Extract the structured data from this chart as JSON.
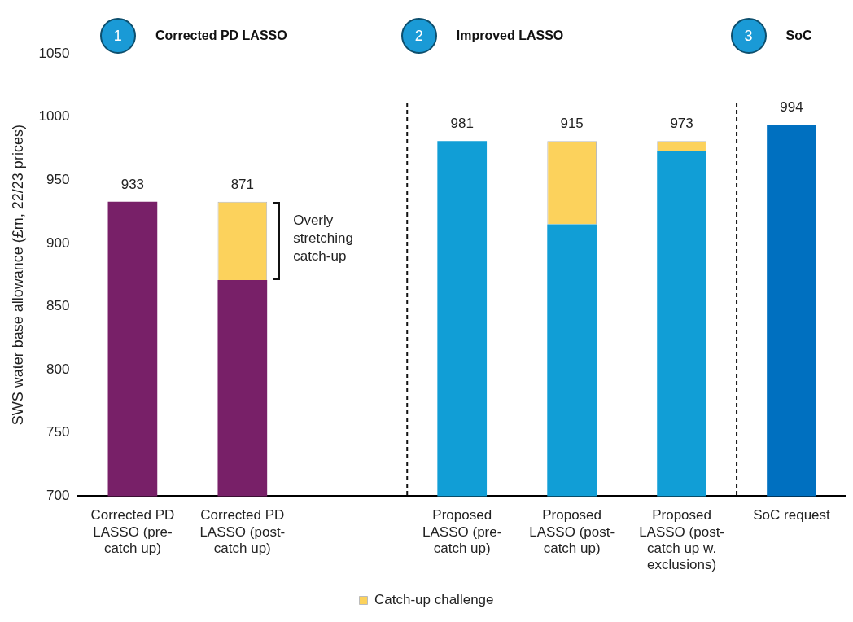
{
  "chart_data": {
    "type": "bar",
    "ylabel": "SWS water base allowance (£m, 22/23 prices)",
    "categories": [
      "Corrected PD LASSO (pre-catch up)",
      "Corrected PD LASSO (post-catch up)",
      null,
      "Proposed LASSO (pre-catch up)",
      "Proposed LASSO (post-catch up)",
      "Proposed LASSO (post-catch up w. exclusions)",
      "SoC request"
    ],
    "series": [
      {
        "colors": [
          "#782068",
          "#782068",
          "#782068",
          "#119ed6",
          "#119ed6",
          "#119ed6",
          "#0070c0"
        ],
        "values": [
          933,
          871,
          null,
          981,
          915,
          973,
          994
        ],
        "value_labels": [
          "933",
          null,
          null,
          "981",
          null,
          null,
          "994"
        ]
      },
      {
        "name": "Catch-up challenge",
        "color": "#fcd25c",
        "values": [
          null,
          62,
          null,
          null,
          66,
          8,
          null
        ],
        "base": [
          null,
          871,
          null,
          null,
          915,
          973,
          null
        ]
      }
    ],
    "ylim": [
      700,
      1050
    ],
    "yticks": [
      700,
      750,
      800,
      850,
      900,
      950,
      1000,
      1050
    ],
    "grid": false,
    "legend": "bottom",
    "annotations": [
      "1",
      "Corrected PD LASSO",
      "2",
      "Improved LASSO",
      "3",
      "SoC",
      "Overly stretching catch-up",
      {
        "text": "871",
        "x": "Corrected PD LASSO (post-catch up)",
        "y": 933
      },
      {
        "text": "915",
        "x": "Proposed LASSO (post-catch up)",
        "y": 981
      },
      {
        "text": "973",
        "x": "Proposed LASSO (post-catch up w. exclusions)",
        "y": 981
      }
    ]
  }
}
